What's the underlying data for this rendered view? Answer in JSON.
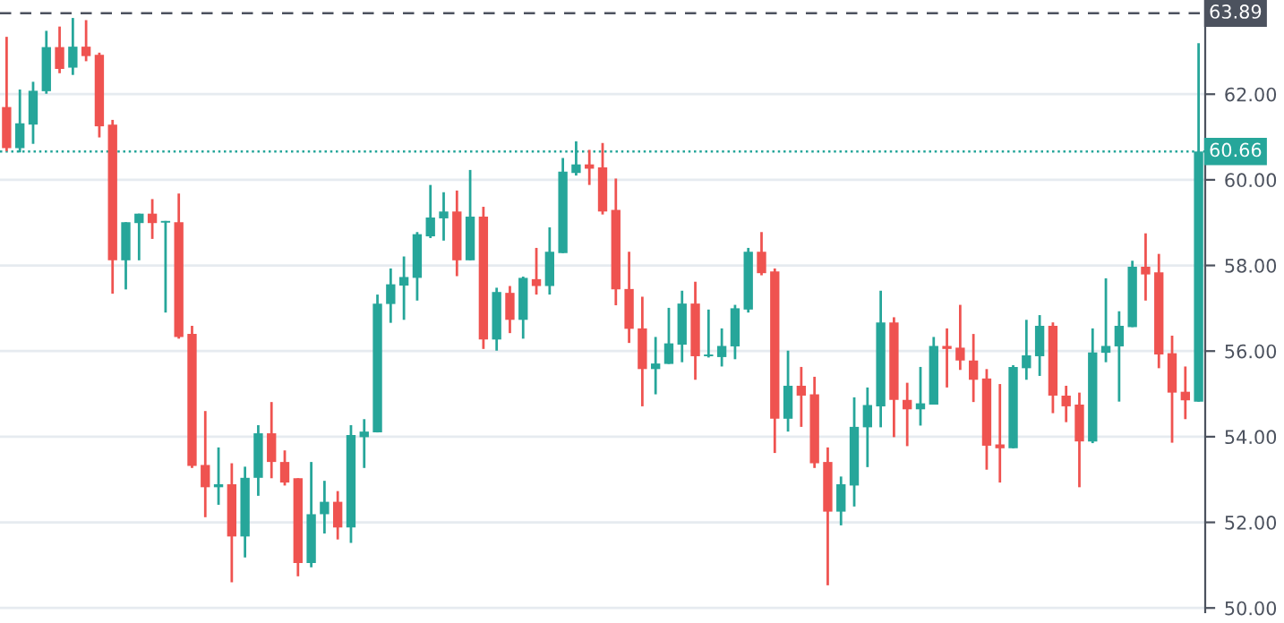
{
  "chart_data": {
    "type": "candlestick",
    "categories": [
      null,
      null,
      null,
      null,
      null,
      null,
      null,
      null,
      null,
      null,
      null,
      null,
      null,
      null,
      null,
      null,
      null,
      null,
      null,
      null,
      null,
      null,
      null,
      null,
      null,
      null,
      null,
      null,
      null,
      null,
      null,
      null,
      null,
      null,
      null,
      null,
      null,
      null,
      null,
      null,
      null,
      null,
      null,
      null,
      null,
      null,
      null,
      null,
      null,
      null,
      null,
      null,
      null,
      null,
      null,
      null,
      null,
      null,
      null,
      null,
      null,
      null,
      null,
      null,
      null,
      null,
      null,
      null,
      null,
      null,
      null,
      null,
      null,
      null,
      null,
      null,
      null,
      null,
      null,
      null,
      null,
      null,
      null,
      null,
      null,
      null,
      null,
      null,
      null,
      null,
      null
    ],
    "ohlc": [
      [
        61.7,
        63.34,
        60.67,
        60.74
      ],
      [
        60.74,
        62.11,
        60.64,
        61.32
      ],
      [
        61.29,
        62.29,
        60.84,
        62.08
      ],
      [
        62.07,
        63.48,
        62.01,
        63.1
      ],
      [
        63.1,
        63.58,
        62.49,
        62.59
      ],
      [
        62.62,
        63.78,
        62.45,
        63.11
      ],
      [
        63.11,
        63.73,
        62.77,
        62.89
      ],
      [
        62.92,
        62.97,
        60.99,
        61.25
      ],
      [
        61.29,
        61.4,
        57.34,
        58.12
      ],
      [
        58.12,
        59.01,
        57.44,
        59.01
      ],
      [
        58.99,
        59.21,
        58.12,
        59.21
      ],
      [
        59.21,
        59.55,
        58.62,
        58.99
      ],
      [
        59.0,
        59.04,
        56.9,
        59.04
      ],
      [
        59.01,
        59.68,
        56.29,
        56.33
      ],
      [
        56.4,
        56.59,
        53.27,
        53.32
      ],
      [
        53.34,
        54.6,
        52.12,
        52.82
      ],
      [
        52.82,
        53.75,
        52.41,
        52.89
      ],
      [
        52.89,
        53.38,
        50.6,
        51.67
      ],
      [
        51.67,
        53.3,
        51.18,
        53.04
      ],
      [
        53.04,
        54.27,
        52.62,
        54.08
      ],
      [
        54.08,
        54.81,
        53.03,
        53.41
      ],
      [
        53.41,
        53.68,
        52.86,
        52.93
      ],
      [
        53.03,
        53.03,
        50.74,
        51.05
      ],
      [
        51.05,
        53.41,
        50.95,
        52.19
      ],
      [
        52.19,
        52.97,
        51.74,
        52.48
      ],
      [
        52.48,
        52.73,
        51.6,
        51.88
      ],
      [
        51.88,
        54.27,
        51.52,
        54.04
      ],
      [
        53.99,
        54.41,
        53.27,
        54.12
      ],
      [
        54.1,
        57.32,
        54.1,
        57.11
      ],
      [
        57.1,
        57.93,
        56.66,
        57.56
      ],
      [
        57.53,
        58.21,
        56.73,
        57.73
      ],
      [
        57.71,
        58.78,
        57.18,
        58.73
      ],
      [
        58.68,
        59.88,
        58.64,
        59.12
      ],
      [
        59.1,
        59.71,
        58.58,
        59.26
      ],
      [
        59.26,
        59.75,
        57.75,
        58.12
      ],
      [
        58.12,
        60.23,
        58.12,
        59.14
      ],
      [
        59.14,
        59.37,
        56.05,
        56.27
      ],
      [
        56.27,
        57.48,
        56.01,
        57.38
      ],
      [
        57.36,
        57.52,
        56.42,
        56.73
      ],
      [
        56.73,
        57.74,
        56.29,
        57.71
      ],
      [
        57.68,
        58.41,
        57.32,
        57.52
      ],
      [
        57.52,
        58.89,
        57.32,
        58.32
      ],
      [
        58.29,
        60.51,
        58.29,
        60.19
      ],
      [
        60.16,
        60.9,
        60.1,
        60.36
      ],
      [
        60.36,
        60.7,
        59.88,
        60.26
      ],
      [
        60.29,
        60.86,
        59.19,
        59.26
      ],
      [
        59.3,
        60.03,
        57.07,
        57.44
      ],
      [
        57.45,
        58.32,
        56.19,
        56.52
      ],
      [
        56.53,
        57.27,
        54.71,
        55.58
      ],
      [
        55.58,
        56.33,
        54.99,
        55.71
      ],
      [
        55.7,
        57.01,
        55.7,
        56.18
      ],
      [
        56.15,
        57.41,
        55.74,
        57.11
      ],
      [
        57.11,
        57.62,
        55.33,
        55.88
      ],
      [
        55.88,
        56.97,
        55.85,
        55.92
      ],
      [
        55.86,
        56.53,
        55.64,
        56.12
      ],
      [
        56.11,
        57.08,
        55.81,
        57.0
      ],
      [
        56.97,
        58.41,
        56.9,
        58.32
      ],
      [
        58.32,
        58.78,
        57.77,
        57.82
      ],
      [
        57.86,
        57.93,
        53.62,
        54.42
      ],
      [
        54.42,
        56.01,
        54.12,
        55.19
      ],
      [
        55.19,
        55.63,
        54.23,
        54.96
      ],
      [
        54.99,
        55.4,
        53.27,
        53.38
      ],
      [
        53.41,
        53.75,
        50.53,
        52.25
      ],
      [
        52.25,
        53.07,
        51.93,
        52.89
      ],
      [
        52.86,
        54.92,
        52.37,
        54.23
      ],
      [
        54.22,
        55.15,
        53.29,
        54.74
      ],
      [
        54.71,
        57.41,
        54.22,
        56.67
      ],
      [
        56.67,
        56.79,
        53.99,
        54.86
      ],
      [
        54.86,
        55.26,
        53.78,
        54.64
      ],
      [
        54.64,
        55.63,
        54.26,
        54.78
      ],
      [
        54.75,
        56.33,
        54.75,
        56.12
      ],
      [
        56.12,
        56.53,
        55.15,
        56.05
      ],
      [
        56.08,
        57.08,
        55.56,
        55.78
      ],
      [
        55.78,
        56.4,
        54.81,
        55.33
      ],
      [
        55.36,
        55.58,
        53.23,
        53.79
      ],
      [
        53.82,
        55.23,
        52.93,
        53.73
      ],
      [
        53.73,
        55.67,
        53.73,
        55.63
      ],
      [
        55.6,
        56.73,
        55.33,
        55.9
      ],
      [
        55.88,
        56.84,
        55.42,
        56.59
      ],
      [
        56.59,
        56.67,
        54.55,
        54.96
      ],
      [
        54.96,
        55.19,
        54.34,
        54.71
      ],
      [
        54.75,
        55.03,
        52.82,
        53.89
      ],
      [
        53.89,
        56.53,
        53.85,
        55.97
      ],
      [
        55.96,
        57.7,
        55.74,
        56.12
      ],
      [
        56.11,
        56.93,
        54.82,
        56.59
      ],
      [
        56.56,
        58.11,
        56.56,
        57.97
      ],
      [
        57.97,
        58.75,
        57.18,
        57.79
      ],
      [
        57.84,
        58.27,
        55.6,
        55.92
      ],
      [
        55.95,
        56.36,
        53.86,
        55.03
      ],
      [
        55.05,
        55.64,
        54.41,
        54.85
      ],
      [
        54.82,
        63.19,
        54.82,
        60.66
      ]
    ],
    "colors": [
      "#ef5350",
      "#26a69a",
      "#26a69a",
      "#26a69a",
      "#ef5350",
      "#26a69a",
      "#ef5350",
      "#ef5350",
      "#ef5350",
      "#26a69a",
      "#26a69a",
      "#ef5350",
      "#26a69a",
      "#ef5350",
      "#ef5350",
      "#ef5350",
      "#26a69a",
      "#ef5350",
      "#26a69a",
      "#26a69a",
      "#ef5350",
      "#ef5350",
      "#ef5350",
      "#26a69a",
      "#26a69a",
      "#ef5350",
      "#26a69a",
      "#26a69a",
      "#26a69a",
      "#26a69a",
      "#26a69a",
      "#26a69a",
      "#26a69a",
      "#26a69a",
      "#ef5350",
      "#26a69a",
      "#ef5350",
      "#26a69a",
      "#ef5350",
      "#26a69a",
      "#ef5350",
      "#26a69a",
      "#26a69a",
      "#26a69a",
      "#ef5350",
      "#ef5350",
      "#ef5350",
      "#ef5350",
      "#ef5350",
      "#26a69a",
      "#26a69a",
      "#26a69a",
      "#ef5350",
      "#26a69a",
      "#26a69a",
      "#26a69a",
      "#26a69a",
      "#ef5350",
      "#ef5350",
      "#26a69a",
      "#ef5350",
      "#ef5350",
      "#ef5350",
      "#26a69a",
      "#26a69a",
      "#26a69a",
      "#26a69a",
      "#ef5350",
      "#ef5350",
      "#26a69a",
      "#26a69a",
      "#ef5350",
      "#ef5350",
      "#ef5350",
      "#ef5350",
      "#ef5350",
      "#26a69a",
      "#26a69a",
      "#26a69a",
      "#ef5350",
      "#ef5350",
      "#ef5350",
      "#26a69a",
      "#26a69a",
      "#26a69a",
      "#26a69a",
      "#ef5350",
      "#ef5350",
      "#ef5350",
      "#ef5350",
      "#26a69a"
    ],
    "ylim": [
      49.9,
      64.2
    ],
    "yticks": [
      {
        "value": 50,
        "label": "50.00"
      },
      {
        "value": 52,
        "label": "52.00"
      },
      {
        "value": 54,
        "label": "54.00"
      },
      {
        "value": 56,
        "label": "56.00"
      },
      {
        "value": 58,
        "label": "58.00"
      },
      {
        "value": 60,
        "label": "60.00"
      },
      {
        "value": 62,
        "label": "62.00"
      }
    ],
    "ref_lines": [
      {
        "axis": "y",
        "value": 63.89,
        "label": "63.89",
        "color": "#4c525e",
        "line_style": "dashed"
      },
      {
        "axis": "y",
        "value": 60.66,
        "label": "60.66",
        "color": "#26a69a",
        "line_style": "dotted"
      }
    ],
    "grid": "y"
  }
}
